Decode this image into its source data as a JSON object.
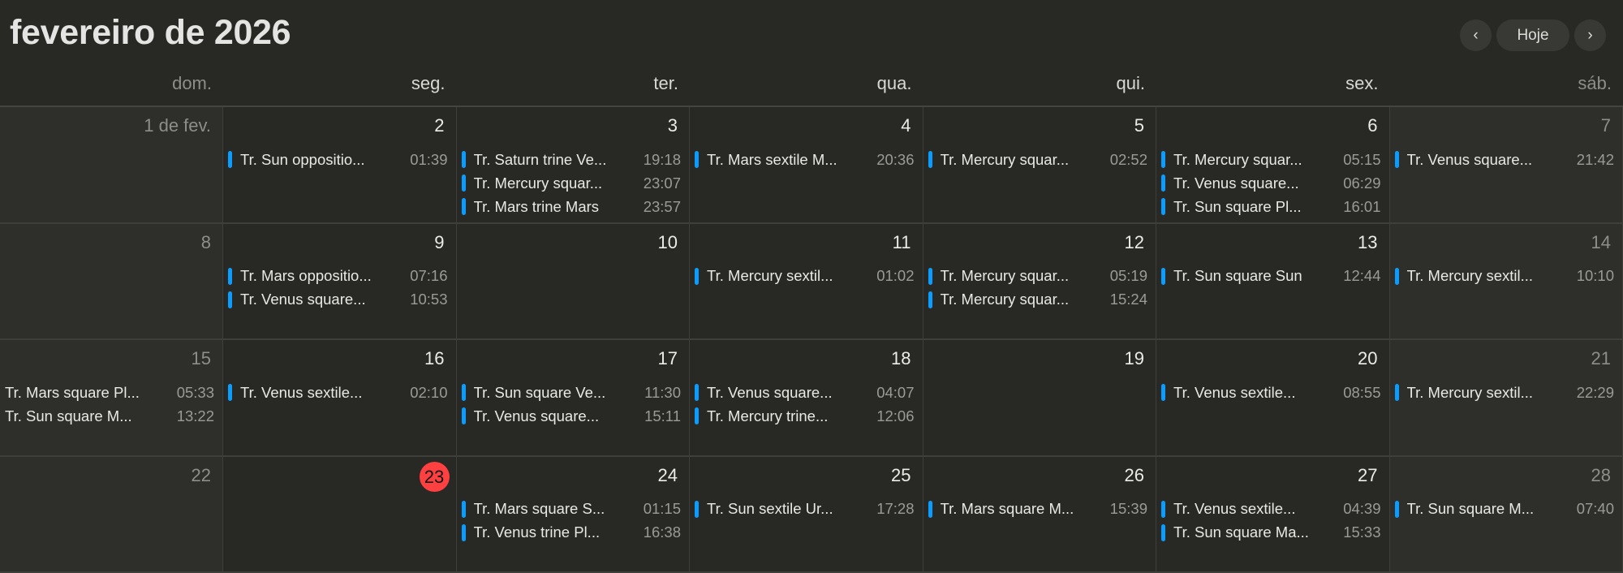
{
  "header": {
    "title": "fevereiro de 2026",
    "prev_label": "‹",
    "today_label": "Hoje",
    "next_label": "›"
  },
  "accent_color": "#0a9cff",
  "today_color": "#ff4040",
  "weekdays": [
    "dom.",
    "seg.",
    "ter.",
    "qua.",
    "qui.",
    "sex.",
    "sáb."
  ],
  "today": "23",
  "days": [
    {
      "label": "1 de fev.",
      "events": []
    },
    {
      "label": "2",
      "events": [
        {
          "name": "Tr. Sun oppositio...",
          "time": "01:39"
        }
      ]
    },
    {
      "label": "3",
      "events": [
        {
          "name": "Tr. Saturn trine Ve...",
          "time": "19:18"
        },
        {
          "name": "Tr. Mercury squar...",
          "time": "23:07"
        },
        {
          "name": "Tr. Mars trine Mars",
          "time": "23:57"
        }
      ]
    },
    {
      "label": "4",
      "events": [
        {
          "name": "Tr. Mars sextile M...",
          "time": "20:36"
        }
      ]
    },
    {
      "label": "5",
      "events": [
        {
          "name": "Tr. Mercury squar...",
          "time": "02:52"
        }
      ]
    },
    {
      "label": "6",
      "events": [
        {
          "name": "Tr. Mercury squar...",
          "time": "05:15"
        },
        {
          "name": "Tr. Venus square...",
          "time": "06:29"
        },
        {
          "name": "Tr. Sun square Pl...",
          "time": "16:01"
        }
      ]
    },
    {
      "label": "7",
      "events": [
        {
          "name": "Tr. Venus square...",
          "time": "21:42"
        }
      ]
    },
    {
      "label": "8",
      "events": []
    },
    {
      "label": "9",
      "events": [
        {
          "name": "Tr. Mars oppositio...",
          "time": "07:16"
        },
        {
          "name": "Tr. Venus square...",
          "time": "10:53"
        }
      ]
    },
    {
      "label": "10",
      "events": []
    },
    {
      "label": "11",
      "events": [
        {
          "name": "Tr. Mercury sextil...",
          "time": "01:02"
        }
      ]
    },
    {
      "label": "12",
      "events": [
        {
          "name": "Tr. Mercury squar...",
          "time": "05:19"
        },
        {
          "name": "Tr. Mercury squar...",
          "time": "15:24"
        }
      ]
    },
    {
      "label": "13",
      "events": [
        {
          "name": "Tr. Sun square Sun",
          "time": "12:44"
        }
      ]
    },
    {
      "label": "14",
      "events": [
        {
          "name": "Tr. Mercury sextil...",
          "time": "10:10"
        }
      ]
    },
    {
      "label": "15",
      "events": [
        {
          "name": "Tr. Mars square Pl...",
          "time": "05:33",
          "nobar": true
        },
        {
          "name": "Tr. Sun square M...",
          "time": "13:22",
          "nobar": true
        }
      ]
    },
    {
      "label": "16",
      "events": [
        {
          "name": "Tr. Venus sextile...",
          "time": "02:10"
        }
      ]
    },
    {
      "label": "17",
      "events": [
        {
          "name": "Tr. Sun square Ve...",
          "time": "11:30"
        },
        {
          "name": "Tr. Venus square...",
          "time": "15:11"
        }
      ]
    },
    {
      "label": "18",
      "events": [
        {
          "name": "Tr. Venus square...",
          "time": "04:07"
        },
        {
          "name": "Tr. Mercury trine...",
          "time": "12:06"
        }
      ]
    },
    {
      "label": "19",
      "events": []
    },
    {
      "label": "20",
      "events": [
        {
          "name": "Tr. Venus sextile...",
          "time": "08:55"
        }
      ]
    },
    {
      "label": "21",
      "events": [
        {
          "name": "Tr. Mercury sextil...",
          "time": "22:29"
        }
      ]
    },
    {
      "label": "22",
      "events": []
    },
    {
      "label": "23",
      "events": []
    },
    {
      "label": "24",
      "events": [
        {
          "name": "Tr. Mars square S...",
          "time": "01:15"
        },
        {
          "name": "Tr. Venus trine Pl...",
          "time": "16:38"
        }
      ]
    },
    {
      "label": "25",
      "events": [
        {
          "name": "Tr. Sun sextile Ur...",
          "time": "17:28"
        }
      ]
    },
    {
      "label": "26",
      "events": [
        {
          "name": "Tr. Mars square M...",
          "time": "15:39"
        }
      ]
    },
    {
      "label": "27",
      "events": [
        {
          "name": "Tr. Venus sextile...",
          "time": "04:39"
        },
        {
          "name": "Tr. Sun square Ma...",
          "time": "15:33"
        }
      ]
    },
    {
      "label": "28",
      "events": [
        {
          "name": "Tr. Sun square M...",
          "time": "07:40"
        }
      ]
    }
  ]
}
